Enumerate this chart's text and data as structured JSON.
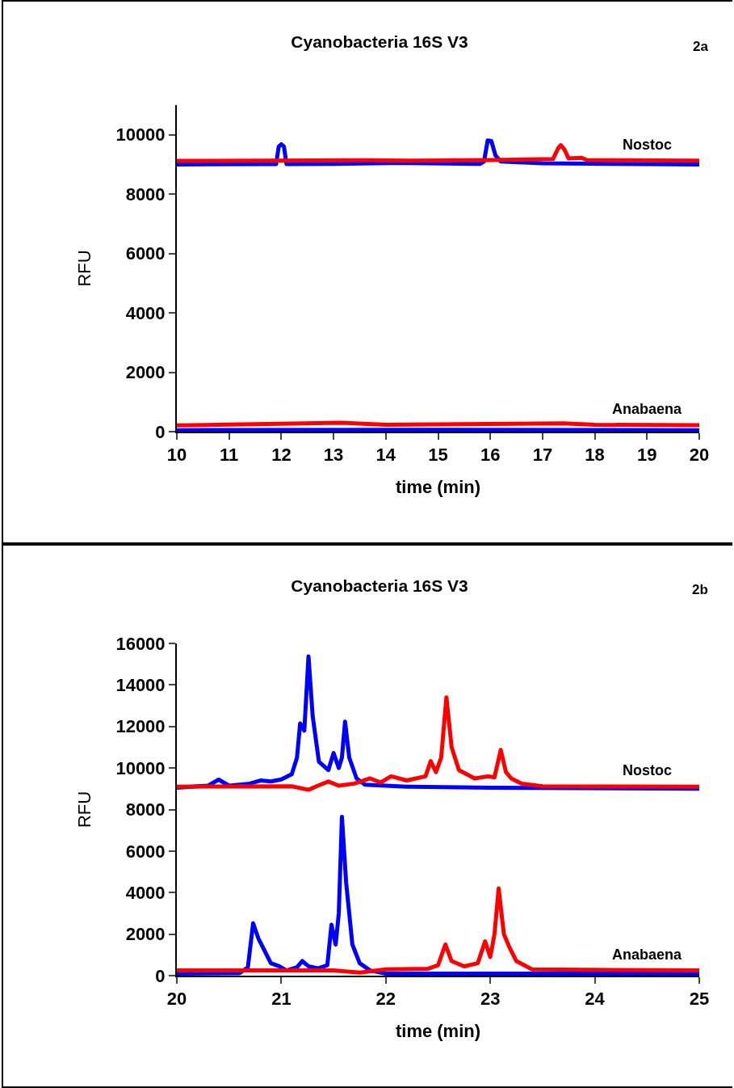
{
  "chart_data": [
    {
      "type": "line",
      "title": "Cyanobacteria 16S V3",
      "xlabel": "time (min)",
      "ylabel": "RFU",
      "xlim": [
        10,
        20
      ],
      "xticks": [
        10,
        11,
        12,
        13,
        14,
        15,
        16,
        17,
        18,
        19,
        20
      ],
      "ylim": [
        0,
        11000
      ],
      "yticks": [
        0,
        2000,
        4000,
        6000,
        8000,
        10000
      ],
      "grid": false,
      "marker": "none",
      "line_style": "solid",
      "annotations": [
        "2a",
        "Nostoc",
        "Anabaena"
      ],
      "series": [
        {
          "color": "#0000ff",
          "x": [
            10,
            11.9,
            11.95,
            12.0,
            12.05,
            12.1,
            13,
            14.3,
            15.8,
            15.88,
            15.95,
            16.02,
            16.1,
            16.2,
            17,
            20
          ],
          "values": [
            9000,
            9010,
            9600,
            9680,
            9600,
            9010,
            9020,
            9050,
            9020,
            9100,
            9810,
            9790,
            9300,
            9100,
            9040,
            9000
          ]
        },
        {
          "color": "#ff0000",
          "x": [
            10,
            13.6,
            14.5,
            16,
            17.2,
            17.3,
            17.35,
            17.42,
            17.5,
            17.75,
            17.85,
            20
          ],
          "values": [
            9120,
            9140,
            9130,
            9150,
            9180,
            9550,
            9650,
            9500,
            9200,
            9220,
            9150,
            9130
          ]
        },
        {
          "color": "#0000ff",
          "x": [
            10,
            15,
            20
          ],
          "values": [
            50,
            60,
            50
          ]
        },
        {
          "color": "#ff0000",
          "x": [
            10,
            13.15,
            14,
            17.4,
            18,
            20
          ],
          "values": [
            210,
            300,
            230,
            280,
            230,
            220
          ]
        }
      ]
    },
    {
      "type": "line",
      "title": "Cyanobacteria 16S V3",
      "xlabel": "time (min)",
      "ylabel": "RFU",
      "xlim": [
        20,
        25
      ],
      "xticks": [
        20,
        21,
        22,
        23,
        24,
        25
      ],
      "ylim": [
        0,
        16000
      ],
      "yticks": [
        0,
        2000,
        4000,
        6000,
        8000,
        10000,
        12000,
        14000,
        16000
      ],
      "grid": false,
      "marker": "none",
      "line_style": "solid",
      "annotations": [
        "2b",
        "Nostoc",
        "Anabaena"
      ],
      "series": [
        {
          "color": "#0000ff",
          "x": [
            20,
            20.3,
            20.4,
            20.5,
            20.7,
            20.8,
            20.9,
            21.0,
            21.1,
            21.15,
            21.18,
            21.22,
            21.26,
            21.3,
            21.36,
            21.45,
            21.5,
            21.55,
            21.58,
            21.61,
            21.65,
            21.72,
            21.8,
            22.2,
            23,
            25
          ],
          "values": [
            9050,
            9150,
            9440,
            9150,
            9250,
            9400,
            9350,
            9450,
            9700,
            10500,
            12150,
            11800,
            15380,
            12500,
            10300,
            9900,
            10720,
            10000,
            10500,
            12230,
            10500,
            9500,
            9200,
            9100,
            9050,
            9000
          ]
        },
        {
          "color": "#ff0000",
          "x": [
            20,
            21.1,
            21.26,
            21.35,
            21.45,
            21.55,
            21.7,
            21.85,
            21.95,
            22.05,
            22.2,
            22.38,
            22.43,
            22.48,
            22.53,
            22.58,
            22.63,
            22.7,
            22.85,
            22.98,
            23.04,
            23.1,
            23.15,
            23.2,
            23.3,
            23.5,
            25
          ],
          "values": [
            9100,
            9120,
            8950,
            9150,
            9350,
            9150,
            9250,
            9500,
            9300,
            9600,
            9400,
            9600,
            10330,
            9800,
            10500,
            13400,
            11000,
            9900,
            9500,
            9600,
            9550,
            10870,
            9800,
            9500,
            9250,
            9120,
            9100
          ]
        },
        {
          "color": "#0000ff",
          "x": [
            20,
            20.6,
            20.68,
            20.73,
            20.78,
            20.82,
            20.9,
            20.98,
            21.05,
            21.15,
            21.2,
            21.26,
            21.35,
            21.44,
            21.48,
            21.52,
            21.55,
            21.58,
            21.62,
            21.68,
            21.75,
            21.85,
            22,
            25
          ],
          "values": [
            100,
            120,
            400,
            2520,
            1800,
            1400,
            600,
            450,
            250,
            400,
            700,
            450,
            350,
            500,
            2450,
            1500,
            3000,
            7650,
            4500,
            1500,
            600,
            250,
            100,
            100
          ]
        },
        {
          "color": "#ff0000",
          "x": [
            20,
            21.5,
            21.75,
            22.0,
            22.4,
            22.5,
            22.57,
            22.63,
            22.75,
            22.88,
            22.95,
            23.0,
            23.04,
            23.08,
            23.13,
            23.18,
            23.25,
            23.4,
            25
          ],
          "values": [
            250,
            250,
            150,
            300,
            330,
            500,
            1500,
            700,
            450,
            600,
            1650,
            900,
            2000,
            4200,
            2000,
            1400,
            700,
            300,
            250
          ]
        }
      ]
    }
  ]
}
